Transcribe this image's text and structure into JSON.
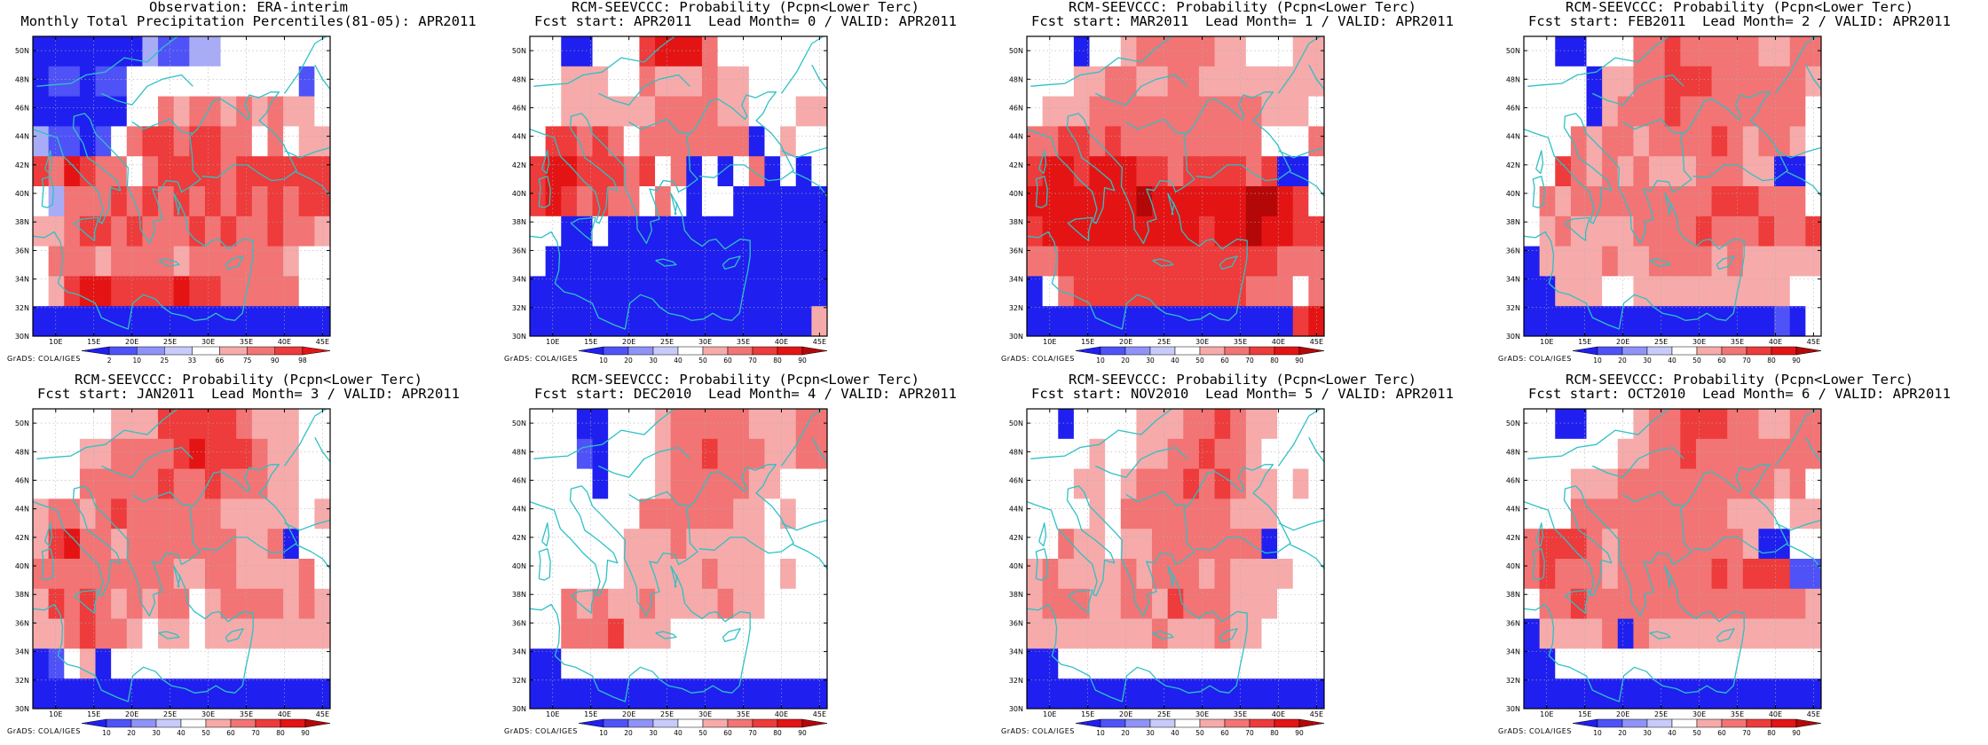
{
  "common": {
    "credit": "GrADS: COLA/IGES",
    "lat_labels": [
      "50N",
      "48N",
      "46N",
      "44N",
      "42N",
      "40N",
      "38N",
      "36N",
      "34N",
      "32N",
      "30N"
    ],
    "lon_labels": [
      "10E",
      "15E",
      "20E",
      "25E",
      "30E",
      "35E",
      "40E",
      "45E"
    ],
    "lat_range": [
      30,
      51
    ],
    "lon_range": [
      7,
      46
    ],
    "grid_dims": [
      10,
      19
    ],
    "palette": {
      "b3": "#1f1ff0",
      "b2": "#4f52f7",
      "b1": "#a8acf6",
      "w": "#ffffff",
      "r1": "#f6aaaa",
      "r2": "#f27474",
      "r3": "#ee3b3b",
      "r4": "#e41414",
      "r5": "#b40808"
    },
    "coast_color": "#2ec1c6",
    "grid_line_color": "#b0b0b0"
  },
  "colorbars": {
    "obs": {
      "labels": [
        "2",
        "10",
        "25",
        "33",
        "66",
        "75",
        "90",
        "98"
      ],
      "colors": [
        "#1f1ff0",
        "#4f52f7",
        "#8f93f7",
        "#c8cbfa",
        "#ffffff",
        "#f6aaaa",
        "#f27474",
        "#ee3b3b",
        "#e41414"
      ]
    },
    "prob": {
      "labels": [
        "10",
        "20",
        "30",
        "40",
        "50",
        "60",
        "70",
        "80",
        "90"
      ],
      "colors": [
        "#1f1ff0",
        "#4f52f7",
        "#8f93f7",
        "#c8cbfa",
        "#ffffff",
        "#f6aaaa",
        "#f27474",
        "#ee3b3b",
        "#e41414",
        "#b40808"
      ]
    }
  },
  "panels": [
    {
      "title1": "Observation: ERA-interim",
      "title2": "Monthly Total Precipitation Percentiles(81-05): APR2011",
      "colorbar": "obs",
      "grid": [
        "b3 b3 b3 b3 b3 b3 b3 b1 b2 b2 b1 b1 w w w w w w w",
        "b3 b2 b2 b3 b2 b2 w w w w w w w w w w w b2 w",
        "b3 b3 b3 b3 b3 b3 w w r2 r1 r2 r2 r1 r2 r1 r2 r1 r1 w",
        "b1 b2 b2 b3 b2 w r2 r3 r3 r2 r3 r3 r2 r2 w r2 w r1 r1",
        "r3 r2 r4 r3 r2 r2 w r2 r3 r3 r3 r3 r2 r3 r3 r3 r3 r3 r3",
        "w b1 r2 r2 r2 r3 r2 r3 r2 r3 r2 r3 r2 r3 r2 r3 r2 r3 r3",
        "r1 r1 r2 r3 r3 r2 r3 r2 r2 r2 r3 r2 r3 r2 r2 r3 r2 r2 r1",
        "w r2 r2 r2 r1 r2 r2 r2 r2 r1 r2 r2 r2 r2 r2 r2 r1 w w",
        "w r1 r3 r4 r4 r3 r3 r3 r3 r4 r3 r3 r2 r2 r2 r2 r2 w w",
        "b3 b3 b3 b3 b3 b3 b3 b3 b3 b3 b3 b3 b3 b3 b3 b3 b3 b3 b3"
      ]
    },
    {
      "title1": "RCM-SEEVCCC: Probability (Pcpn<Lower Terc)",
      "title2": "Fcst start: APR2011  Lead Month= 0 / VALID: APR2011",
      "colorbar": "prob",
      "grid": [
        "w w b3 b3 w w w r3 r4 r4 r4 r2 w w w w w w w",
        "w w r1 r1 r1 w w r2 r1 r1 r1 r2 r1 r1 w w w w w",
        "w w r1 r1 r1 r1 r1 r1 r2 r2 r2 r2 r1 r1 w w w r1 r1",
        "w r3 r3 r2 r3 r2 w r2 r2 r2 r2 r2 r2 r2 b3 w r1 w w",
        "r3 r4 r4 r3 r3 r3 r2 r3 w r2 b3 w b3 w r2 b3 w b3 w",
        "r3 r4 r3 r2 r3 r2 r2 w r2 w b3 w w b3 b3 b3 b3 b3 b3",
        "w w b3 b3 w b3 b3 b3 b3 b3 b3 b3 b3 b3 b3 b3 b3 b3 b3",
        "w b3 b3 b3 b3 b3 b3 b3 b3 b3 b3 b3 b3 b3 b3 b3 b3 b3 b3",
        "b3 b3 b3 b3 b3 b3 b3 b3 b3 b3 b3 b3 b3 b3 b3 b3 b3 b3 b3",
        "b3 b3 b3 b3 b3 b3 b3 b3 b3 b3 b3 b3 b3 b3 b3 b3 b3 b3 r1"
      ]
    },
    {
      "title1": "RCM-SEEVCCC: Probability (Pcpn<Lower Terc)",
      "title2": "Fcst start: MAR2011  Lead Month= 1 / VALID: APR2011",
      "colorbar": "prob",
      "grid": [
        "w w w b3 w w r1 r2 r2 r2 r2 r2 r1 r1 w w w r1 r1",
        "w w w r1 r1 r2 r2 r1 r1 r2 r2 r1 r1 r1 r1 r1 r1 r1 r1",
        "w r1 r1 r1 r2 r2 r2 r2 r2 r2 r2 r2 r2 r2 r2 r1 r1 r1 w",
        "r2 r2 r3 r3 r2 r3 r2 r2 r2 r2 r2 r2 r2 r2 r2 w w w r2",
        "r3 r4 r4 r3 r4 r4 r4 r3 r3 r2 r3 r3 r3 r3 r2 r3 b3 b3 w",
        "r4 r4 r4 r4 r4 r4 r4 r5 r4 r4 r4 r4 r4 r4 r5 r5 r4 r3 w",
        "r3 r4 r4 r4 r4 r4 r4 r4 r4 r4 r4 r3 r4 r4 r5 r4 r4 r3 r3",
        "r2 r2 r3 r3 r3 r3 r3 r3 r3 r3 r3 r3 r3 r3 r3 r3 r2 r2 r2",
        "b3 w r2 r3 r3 r3 r3 r3 r3 r3 r3 r3 r3 r3 r2 r2 r2 w r2",
        "b3 b3 b3 b3 b3 b3 b3 b3 b3 b3 b3 b3 b3 b3 b3 b3 b3 r3 r4"
      ]
    },
    {
      "title1": "RCM-SEEVCCC: Probability (Pcpn<Lower Terc)",
      "title2": "Fcst start: FEB2011  Lead Month= 2 / VALID: APR2011",
      "colorbar": "prob",
      "grid": [
        "w w b3 b3 w w w r2 r2 r3 r2 r2 r2 r2 r2 r1 r1 r2 r2",
        "w w w w b3 r1 r1 r2 r2 r3 r3 r3 r2 r2 r2 r2 r2 r2 r1",
        "w w w w b3 r1 r2 r2 r2 r3 r2 r2 r2 r2 r2 r2 r2 r2 w",
        "w w w r2 r1 r2 r2 r1 r2 r2 r2 r2 r3 r2 r1 r2 r2 r1 w",
        "w w r3 r2 r1 r2 r1 r2 r1 r1 r1 r2 r2 r2 r1 r1 b3 b3 w",
        "w r2 r1 r2 r2 r2 r2 r2 r2 r2 r2 r2 r3 r3 r3 r2 r2 r2 w",
        "w r1 r2 r1 r1 r1 r1 r2 r2 r2 r2 r3 r2 r2 r2 r3 r2 r2 r3",
        "b3 r1 r1 r1 r1 r2 r1 r1 r2 r2 r2 r2 r1 r2 r1 r1 r1 r1 r1",
        "b3 b3 r1 r1 r1 w w r1 r1 r1 r1 r1 r1 r1 r1 r1 r1 w w",
        "b3 b3 b3 b3 b3 b3 b3 b3 b3 b3 b3 b3 b3 b3 b3 b3 b2 b3 w"
      ]
    },
    {
      "title1": "RCM-SEEVCCC: Probability (Pcpn<Lower Terc)",
      "title2": "Fcst start: JAN2011  Lead Month= 3 / VALID: APR2011",
      "colorbar": "prob",
      "grid": [
        "w w w w w r1 r1 r1 r3 r3 r3 r3 r3 r2 r1 r1 r1 w w",
        "w w w r1 r1 r2 r2 r2 r2 r3 r4 r3 r3 r3 r2 r1 r1 w w",
        "w w w r2 r2 r2 r2 r2 r3 r2 r2 r3 r2 r2 r2 r1 r1 w w",
        "r1 r2 r2 r1 r2 r3 r2 r2 r2 r2 r2 r2 r1 r1 r1 r1 r1 w r1",
        "r1 r3 r4 r2 r2 r1 r2 r2 r2 r2 r2 r2 r2 r1 r1 r2 b3 w w",
        "r2 r2 r2 r2 r2 r2 r2 r2 r2 r1 r1 r2 r2 r1 r1 r1 r1 r2 w",
        "r1 r3 r2 r3 r2 r1 r2 r1 r2 r2 w r1 r2 r2 r2 r2 r1 r2 r1",
        "r1 r1 r2 r3 r2 r2 r1 w r1 r1 w r1 r1 r1 r1 r1 r1 r1 r1",
        "b3 b2 w r1 b3 w w w w w w w w w w w w w w",
        "b3 b3 b3 b3 b3 b3 b3 b3 b3 b3 b3 b3 b3 b3 b3 b3 b3 b3 b3"
      ]
    },
    {
      "title1": "RCM-SEEVCCC: Probability (Pcpn<Lower Terc)",
      "title2": "Fcst start: DEC2010  Lead Month= 4 / VALID: APR2011",
      "colorbar": "prob",
      "grid": [
        "w w w b3 b3 w w w r1 r2 r2 r2 r2 r2 r1 r1 r1 r2 r2",
        "w w w b2 b3 w w w r1 r2 r2 r3 r2 r2 r2 r1 r1 r2 r2",
        "w w w w b3 w w w r1 r2 r2 r2 r2 r2 r1 r1 w w w",
        "w w w w w w w r2 r2 r2 r2 r2 r2 r1 r1 w r1 w w",
        "w w w w w w r1 r1 r1 r2 r1 r1 r1 r1 r1 w w w w",
        "w w w w w w r1 r1 r1 r1 r1 r2 r1 r1 r1 w r1 w w",
        "w w r2 r1 r2 r1 r1 r2 r1 r1 r1 r1 r2 r1 r1 w w w w",
        "w w r2 r2 r2 r3 r1 r1 r1 w w w w w w w w w w",
        "b3 b3 w w w w w w w w w w w w w w w w w",
        "b3 b3 b3 b3 b3 b3 b3 b3 b3 b3 b3 b3 b3 b3 b3 b3 b3 b3 b3"
      ]
    },
    {
      "title1": "RCM-SEEVCCC: Probability (Pcpn<Lower Terc)",
      "title2": "Fcst start: NOV2010  Lead Month= 5 / VALID: APR2011",
      "colorbar": "prob",
      "grid": [
        "w w b3 w w w w r1 r1 r1 r2 r2 r3 r2 r1 r1 w w w",
        "w w w w r1 w w r1 r1 r2 r2 r3 r2 r2 r1 w w w w",
        "w w w r1 r1 w r1 r2 r2 r2 r3 r2 r3 r2 r1 r1 w r1 w",
        "w w w w r1 w r2 r2 r2 r2 r2 r2 r2 r1 r1 r1 w w w",
        "w w r2 r1 r1 w r1 r1 r2 r2 r2 r2 r2 r2 r2 b3 w w w",
        "r1 r2 r1 r1 r1 r1 r2 r1 r2 r2 r2 r1 r2 r1 r1 r1 r1 w w",
        "r1 r2 r2 r2 r1 r1 r2 r2 r1 r3 r2 r2 r2 r1 r1 r1 w w w",
        "r1 r1 r1 r1 r1 r1 r1 r1 r2 r1 r1 r1 r2 r1 r1 w w w w",
        "b3 b3 w w w w w w w w w w w w w w w w w",
        "b3 b3 b3 b3 b3 b3 b3 b3 b3 b3 b3 b3 b3 b3 b3 b3 b3 b3 b3"
      ]
    },
    {
      "title1": "RCM-SEEVCCC: Probability (Pcpn<Lower Terc)",
      "title2": "Fcst start: OCT2010  Lead Month= 6 / VALID: APR2011",
      "colorbar": "prob",
      "grid": [
        "w w b3 b3 w w w r1 r2 r2 r3 r3 r3 r2 r2 r1 r1 r2 r2",
        "w w w w w w r1 r1 r2 r2 r3 r2 r2 r2 r2 r2 r2 r2 r2",
        "w w w r1 r1 r1 r2 r2 r2 r2 r2 r2 r2 r2 r2 r2 r1 r2 w",
        "w w w r2 r2 r2 r2 r2 r2 r2 r2 r2 r2 r1 r1 r1 w r1 r1",
        "r2 r3 r3 r3 r2 r1 r2 r2 r2 r2 r2 r2 r2 r2 r1 b3 b3 w w",
        "r2 r3 r2 r2 r2 r1 r2 r2 r2 r2 r2 r2 r3 r2 r3 r3 r3 b2 b2",
        "w r2 r2 r3 r2 r2 r2 r2 r2 r2 r2 r2 r2 r2 r2 r2 r2 r2 r1",
        "b3 r1 r1 r1 r1 r2 b3 r2 r1 r1 r1 r1 r1 r1 r1 r1 r1 r1 r1",
        "b3 b3 w w w w w w w w w w w w w w w w w",
        "b3 b3 b3 b3 b3 b3 b3 b3 b3 b3 b3 b3 b3 b3 b3 b3 b3 b3 b3"
      ]
    }
  ]
}
